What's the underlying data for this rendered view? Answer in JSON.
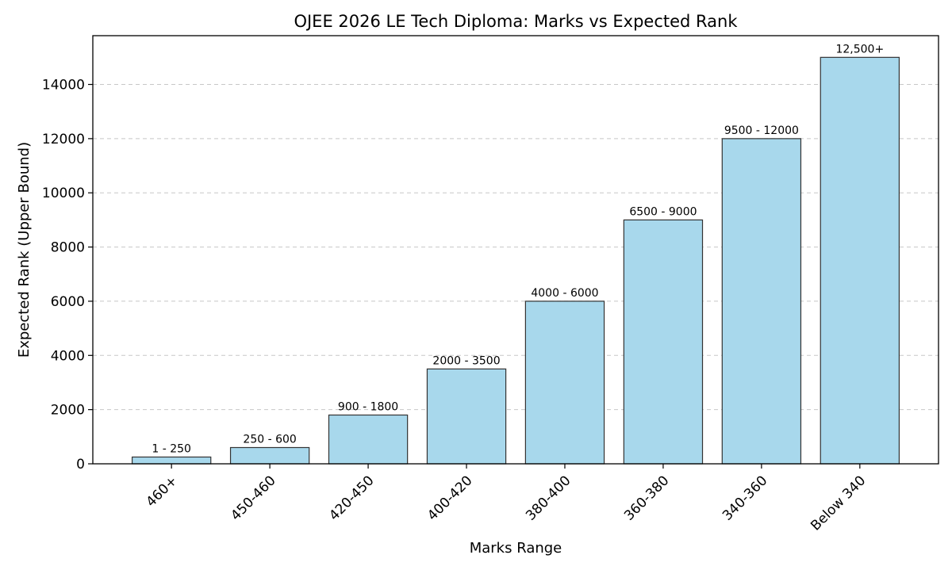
{
  "chart_data": {
    "type": "bar",
    "title": "OJEE 2026 LE Tech Diploma: Marks vs Expected Rank",
    "xlabel": "Marks Range",
    "ylabel": "Expected Rank (Upper Bound)",
    "categories": [
      "460+",
      "450-460",
      "420-450",
      "400-420",
      "380-400",
      "360-380",
      "340-360",
      "Below 340"
    ],
    "values": [
      250,
      600,
      1800,
      3500,
      6000,
      9000,
      12000,
      15000
    ],
    "data_labels": [
      "1 - 250",
      "250 - 600",
      "900 - 1800",
      "2000 - 3500",
      "4000 - 6000",
      "6500 - 9000",
      "9500 - 12000",
      "12,500+"
    ],
    "ylim": [
      0,
      15800
    ],
    "yticks": [
      0,
      2000,
      4000,
      6000,
      8000,
      10000,
      12000,
      14000
    ],
    "grid": "y-axis, dashed",
    "bar_color": "#a8d8ec",
    "bar_edge_color": "#333333"
  }
}
